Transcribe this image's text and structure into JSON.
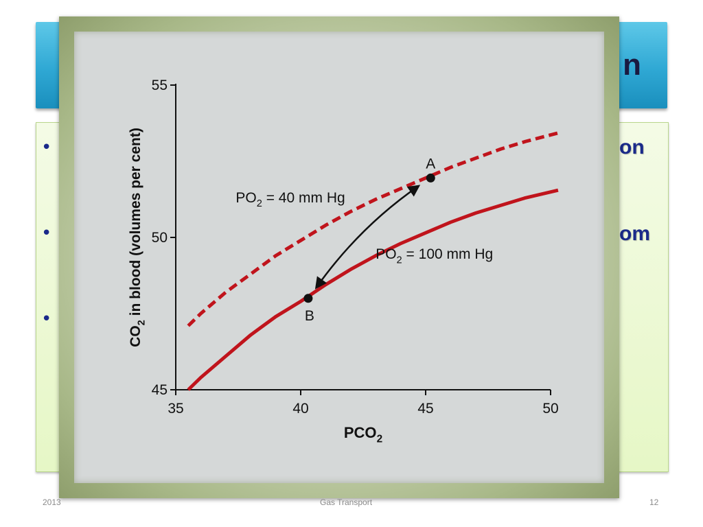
{
  "slide": {
    "title_fragment": "n",
    "bullet_glyph": "•",
    "right_fragments": [
      "on",
      "om"
    ],
    "footer_left": "2013",
    "footer_center": "Gas Transport",
    "footer_right": "12"
  },
  "chart_data": {
    "type": "line",
    "title": "",
    "xlabel": "PCO2",
    "ylabel": "CO2 in blood (volumes per cent)",
    "xlim": [
      35,
      50
    ],
    "ylim": [
      45,
      55
    ],
    "x_ticks": [
      "35",
      "40",
      "45",
      "50"
    ],
    "y_ticks": [
      "45",
      "50",
      "55"
    ],
    "series": [
      {
        "name": "PO2 = 40 mm Hg",
        "style": "dashed",
        "color": "#c0141c",
        "x": [
          35.5,
          36,
          37,
          38,
          39,
          40,
          41,
          42,
          43,
          44,
          45,
          46,
          47,
          48,
          49,
          50.4
        ],
        "y": [
          47.1,
          47.5,
          48.2,
          48.8,
          49.4,
          49.9,
          50.4,
          50.85,
          51.25,
          51.6,
          51.95,
          52.3,
          52.6,
          52.9,
          53.15,
          53.45
        ]
      },
      {
        "name": "PO2 = 100 mm Hg",
        "style": "solid",
        "color": "#c0141c",
        "x": [
          35.5,
          36,
          37,
          38,
          39,
          40,
          41,
          42,
          43,
          44,
          45,
          46,
          47,
          48,
          49,
          50.3
        ],
        "y": [
          45.0,
          45.4,
          46.1,
          46.8,
          47.4,
          47.9,
          48.45,
          48.95,
          49.4,
          49.8,
          50.15,
          50.5,
          50.8,
          51.05,
          51.3,
          51.55
        ]
      }
    ],
    "points": [
      {
        "label": "A",
        "x": 45.2,
        "y": 51.95
      },
      {
        "label": "B",
        "x": 40.3,
        "y": 48.0
      }
    ],
    "arrow": {
      "from": "A",
      "to": "B",
      "direction": "both"
    },
    "annotations": {
      "po2_40_label": "PO2 = 40 mm Hg",
      "po2_100_label": "PO2 = 100 mm Hg"
    },
    "grid": false
  }
}
